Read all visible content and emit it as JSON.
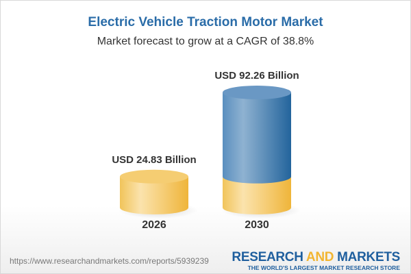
{
  "title": "Electric Vehicle Traction Motor Market",
  "subtitle": "Market forecast to grow at a CAGR of 38.8%",
  "chart_data": {
    "type": "bar",
    "style": "3d-cylinder",
    "categories": [
      "2026",
      "2030"
    ],
    "values": [
      24.83,
      92.26
    ],
    "data_labels": [
      "USD 24.83 Billion",
      "USD 92.26 Billion"
    ],
    "unit": "USD Billion",
    "colors": {
      "base": "#f4c553",
      "growth": "#4a84b8"
    }
  },
  "footer": {
    "url": "https://www.researchandmarkets.com/reports/5939239",
    "logo_part1": "RESEARCH ",
    "logo_part2": "AND",
    "logo_part3": " MARKETS",
    "logo_tagline": "THE WORLD'S LARGEST MARKET RESEARCH STORE"
  }
}
